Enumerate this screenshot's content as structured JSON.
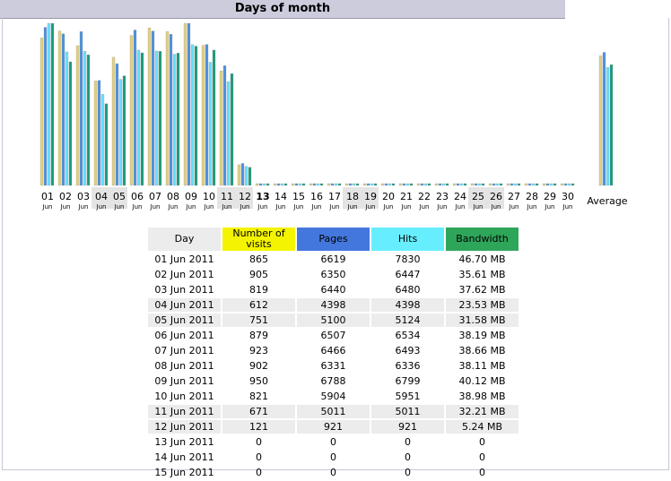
{
  "section_title": "Days of month",
  "colors": {
    "visits": "#e0d080",
    "pages": "#4a90e0",
    "hits": "#66e0ff",
    "bandwidth": "#1a9a7a"
  },
  "chart_data": {
    "type": "bar",
    "categories": [
      "01",
      "02",
      "03",
      "04",
      "05",
      "06",
      "07",
      "08",
      "09",
      "10",
      "11",
      "12",
      "13",
      "14",
      "15",
      "16",
      "17",
      "18",
      "19",
      "20",
      "21",
      "22",
      "23",
      "24",
      "25",
      "26",
      "27",
      "28",
      "29",
      "30"
    ],
    "month_labels": [
      "Jun",
      "Jun",
      "Jun",
      "Jun",
      "Jun",
      "Jun",
      "Jun",
      "Jun",
      "Jun",
      "Jun",
      "Jun",
      "Jun",
      "Jun",
      "Jun",
      "Jun",
      "Jun",
      "Jun",
      "Jun",
      "Jun",
      "Jun",
      "Jun",
      "Jun",
      "Jun",
      "Jun",
      "Jun",
      "Jun",
      "Jun",
      "Jun",
      "Jun",
      "Jun"
    ],
    "weekend_days": [
      "04",
      "05",
      "11",
      "12",
      "18",
      "19",
      "25",
      "26"
    ],
    "today": "13",
    "series": [
      {
        "values": [
          865,
          905,
          819,
          612,
          751,
          879,
          923,
          902,
          950,
          821,
          671,
          121,
          0,
          0,
          0,
          0,
          0,
          0,
          0,
          0,
          0,
          0,
          0,
          0,
          0,
          0,
          0,
          0,
          0,
          0
        ]
      },
      {
        "values": [
          6619,
          6350,
          6440,
          4398,
          5100,
          6507,
          6466,
          6331,
          6788,
          5904,
          5011,
          921,
          0,
          0,
          0,
          0,
          0,
          0,
          0,
          0,
          0,
          0,
          0,
          0,
          0,
          0,
          0,
          0,
          0,
          0
        ]
      },
      {
        "values": [
          7830,
          6447,
          6480,
          4398,
          5124,
          6534,
          6493,
          6336,
          6799,
          5951,
          5011,
          921,
          0,
          0,
          0,
          0,
          0,
          0,
          0,
          0,
          0,
          0,
          0,
          0,
          0,
          0,
          0,
          0,
          0,
          0
        ]
      },
      {
        "values": [
          46.7,
          35.61,
          37.62,
          23.53,
          31.58,
          38.19,
          38.66,
          38.11,
          40.12,
          38.98,
          32.21,
          5.24,
          0,
          0,
          0,
          0,
          0,
          0,
          0,
          0,
          0,
          0,
          0,
          0,
          0,
          0,
          0,
          0,
          0,
          0
        ]
      }
    ],
    "average_label": "Average",
    "average": [
      760,
      5570,
      5700,
      34.8
    ]
  },
  "table": {
    "headers": {
      "day": "Day",
      "visits": "Number of visits",
      "pages": "Pages",
      "hits": "Hits",
      "bandwidth": "Bandwidth"
    },
    "rows": [
      {
        "day": "01 Jun 2011",
        "visits": "865",
        "pages": "6619",
        "hits": "7830",
        "bw": "46.70 MB"
      },
      {
        "day": "02 Jun 2011",
        "visits": "905",
        "pages": "6350",
        "hits": "6447",
        "bw": "35.61 MB"
      },
      {
        "day": "03 Jun 2011",
        "visits": "819",
        "pages": "6440",
        "hits": "6480",
        "bw": "37.62 MB"
      },
      {
        "day": "04 Jun 2011",
        "visits": "612",
        "pages": "4398",
        "hits": "4398",
        "bw": "23.53 MB"
      },
      {
        "day": "05 Jun 2011",
        "visits": "751",
        "pages": "5100",
        "hits": "5124",
        "bw": "31.58 MB"
      },
      {
        "day": "06 Jun 2011",
        "visits": "879",
        "pages": "6507",
        "hits": "6534",
        "bw": "38.19 MB"
      },
      {
        "day": "07 Jun 2011",
        "visits": "923",
        "pages": "6466",
        "hits": "6493",
        "bw": "38.66 MB"
      },
      {
        "day": "08 Jun 2011",
        "visits": "902",
        "pages": "6331",
        "hits": "6336",
        "bw": "38.11 MB"
      },
      {
        "day": "09 Jun 2011",
        "visits": "950",
        "pages": "6788",
        "hits": "6799",
        "bw": "40.12 MB"
      },
      {
        "day": "10 Jun 2011",
        "visits": "821",
        "pages": "5904",
        "hits": "5951",
        "bw": "38.98 MB"
      },
      {
        "day": "11 Jun 2011",
        "visits": "671",
        "pages": "5011",
        "hits": "5011",
        "bw": "32.21 MB"
      },
      {
        "day": "12 Jun 2011",
        "visits": "121",
        "pages": "921",
        "hits": "921",
        "bw": "5.24 MB"
      },
      {
        "day": "13 Jun 2011",
        "visits": "0",
        "pages": "0",
        "hits": "0",
        "bw": "0"
      },
      {
        "day": "14 Jun 2011",
        "visits": "0",
        "pages": "0",
        "hits": "0",
        "bw": "0"
      },
      {
        "day": "15 Jun 2011",
        "visits": "0",
        "pages": "0",
        "hits": "0",
        "bw": "0"
      }
    ]
  }
}
